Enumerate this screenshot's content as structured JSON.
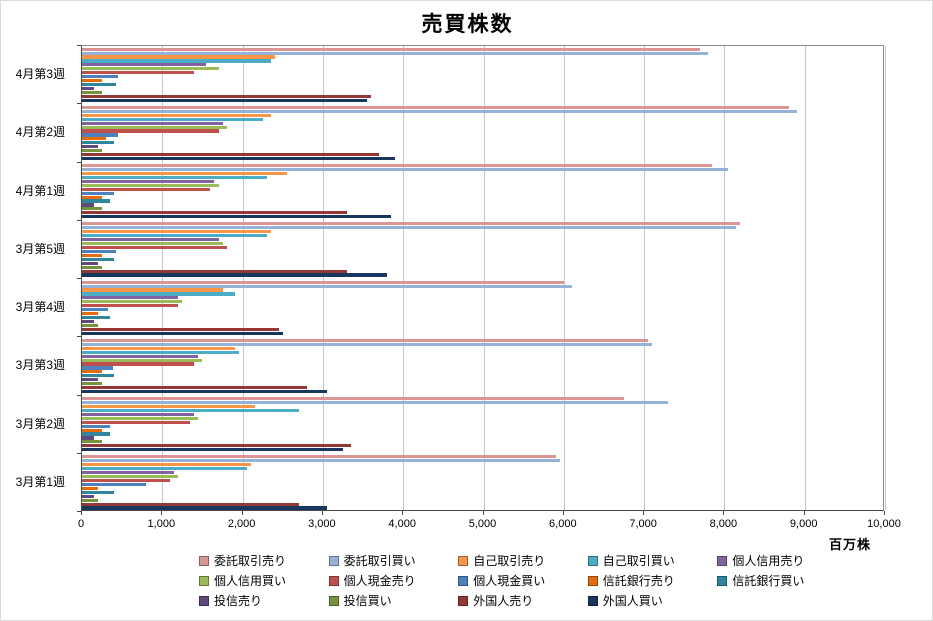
{
  "chart_data": {
    "type": "bar",
    "orientation": "horizontal",
    "title": "売買株数",
    "xlabel": "百万株",
    "xlim": [
      0,
      10000
    ],
    "grid": true,
    "legend_position": "bottom",
    "xticks": [
      0,
      1000,
      2000,
      3000,
      4000,
      5000,
      6000,
      7000,
      8000,
      9000,
      10000
    ],
    "xtick_labels": [
      "0",
      "1,000",
      "2,000",
      "3,000",
      "4,000",
      "5,000",
      "6,000",
      "7,000",
      "8,000",
      "9,000",
      "10,000"
    ],
    "categories": [
      "4月第3週",
      "4月第2週",
      "4月第1週",
      "3月第5週",
      "3月第4週",
      "3月第3週",
      "3月第2週",
      "3月第1週"
    ],
    "series": [
      {
        "name": "委託取引売り",
        "color": "#D99694",
        "values": [
          7700,
          8800,
          7850,
          8200,
          6000,
          7050,
          6750,
          5900
        ]
      },
      {
        "name": "委託取引買い",
        "color": "#95B3D7",
        "values": [
          7800,
          8900,
          8050,
          8150,
          6100,
          7100,
          7300,
          5950
        ]
      },
      {
        "name": "自己取引売り",
        "color": "#F79646",
        "values": [
          2400,
          2350,
          2550,
          2350,
          1750,
          1900,
          2150,
          2100
        ]
      },
      {
        "name": "自己取引買い",
        "color": "#4BACC6",
        "values": [
          2350,
          2250,
          2300,
          2300,
          1900,
          1950,
          2700,
          2050
        ]
      },
      {
        "name": "個人信用売り",
        "color": "#8064A2",
        "values": [
          1550,
          1750,
          1650,
          1700,
          1200,
          1450,
          1400,
          1150
        ]
      },
      {
        "name": "個人信用買い",
        "color": "#9BBB59",
        "values": [
          1700,
          1800,
          1700,
          1750,
          1250,
          1500,
          1450,
          1200
        ]
      },
      {
        "name": "個人現金売り",
        "color": "#C0504D",
        "values": [
          1400,
          1700,
          1600,
          1800,
          1200,
          1400,
          1350,
          1100
        ]
      },
      {
        "name": "個人現金買い",
        "color": "#4F81BD",
        "values": [
          450,
          450,
          400,
          420,
          330,
          380,
          350,
          800
        ]
      },
      {
        "name": "信託銀行売り",
        "color": "#E46C0A",
        "values": [
          250,
          300,
          250,
          250,
          200,
          250,
          250,
          200
        ]
      },
      {
        "name": "信託銀行買い",
        "color": "#31859C",
        "values": [
          420,
          400,
          350,
          400,
          350,
          400,
          350,
          400
        ]
      },
      {
        "name": "投信売り",
        "color": "#604A7B",
        "values": [
          150,
          200,
          150,
          200,
          150,
          200,
          150,
          150
        ]
      },
      {
        "name": "投信買い",
        "color": "#77933C",
        "values": [
          250,
          250,
          250,
          250,
          200,
          250,
          250,
          200
        ]
      },
      {
        "name": "外国人売り",
        "color": "#953735",
        "values": [
          3600,
          3700,
          3300,
          3300,
          2450,
          2800,
          3350,
          2700
        ]
      },
      {
        "name": "外国人買い",
        "color": "#17375E",
        "values": [
          3550,
          3900,
          3850,
          3800,
          2500,
          3050,
          3250,
          3050
        ]
      }
    ]
  }
}
